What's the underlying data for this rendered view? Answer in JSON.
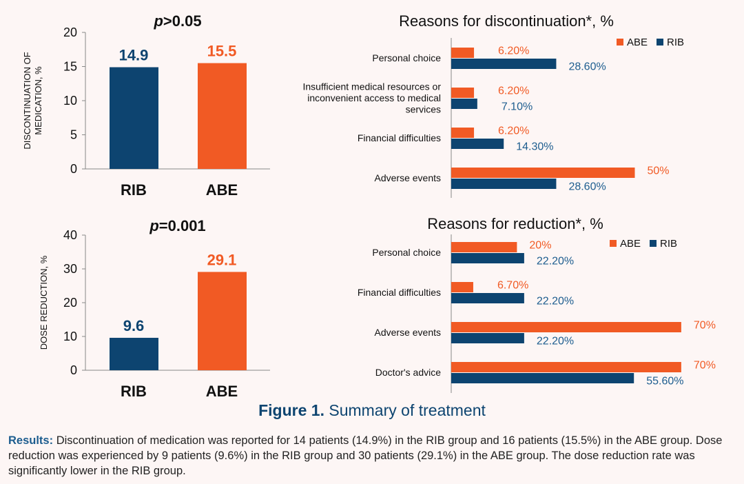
{
  "colors": {
    "RIB": "#0d4470",
    "ABE": "#f15a24",
    "axis": "#999999"
  },
  "chart_data": [
    {
      "type": "bar",
      "title_prefix": "p",
      "title_suffix": ">0.05",
      "ylabel": [
        "DISCONTINUATION OF",
        "MEDICATION, %"
      ],
      "categories": [
        "RIB",
        "ABE"
      ],
      "values": [
        14.9,
        15.5
      ],
      "data_labels": [
        "14.9",
        "15.5"
      ],
      "ylim": [
        0,
        20
      ],
      "yticks": [
        0,
        5,
        10,
        15,
        20
      ],
      "grid": false
    },
    {
      "type": "bar",
      "title_prefix": "p",
      "title_suffix": "=0.001",
      "ylabel": [
        "DOSE REDUCTION, %"
      ],
      "categories": [
        "RIB",
        "ABE"
      ],
      "values": [
        9.6,
        29.1
      ],
      "data_labels": [
        "9.6",
        "29.1"
      ],
      "ylim": [
        0,
        40
      ],
      "yticks": [
        0,
        10,
        20,
        30,
        40
      ],
      "grid": false
    },
    {
      "type": "bar",
      "orientation": "horizontal",
      "title": "Reasons for discontinuation*, %",
      "legend": [
        "ABE",
        "RIB"
      ],
      "legend_position": "top-right",
      "categories": [
        [
          "Personal choice"
        ],
        [
          "Insufficient medical resources or",
          "inconvenient access to medical",
          "services"
        ],
        [
          "Financial difficulties"
        ],
        [
          "Adverse events"
        ]
      ],
      "series": [
        {
          "name": "ABE",
          "values": [
            6.2,
            6.2,
            6.2,
            50
          ],
          "labels": [
            "6.20%",
            "6.20%",
            "6.20%",
            "50%"
          ]
        },
        {
          "name": "RIB",
          "values": [
            28.6,
            7.1,
            14.3,
            28.6
          ],
          "labels": [
            "28.60%",
            "7.10%",
            "14.30%",
            "28.60%"
          ]
        }
      ],
      "grid": false
    },
    {
      "type": "bar",
      "orientation": "horizontal",
      "title": "Reasons for reduction*, %",
      "legend": [
        "ABE",
        "RIB"
      ],
      "legend_position": "top-right",
      "categories": [
        [
          "Personal choice"
        ],
        [
          "Financial difficulties"
        ],
        [
          "Adverse events"
        ],
        [
          "Doctor's advice"
        ]
      ],
      "series": [
        {
          "name": "ABE",
          "values": [
            20,
            6.7,
            70,
            70
          ],
          "labels": [
            "20%",
            "6.70%",
            "70%",
            "70%"
          ]
        },
        {
          "name": "RIB",
          "values": [
            22.2,
            22.2,
            22.2,
            55.6
          ],
          "labels": [
            "22.20%",
            "22.20%",
            "22.20%",
            "55.60%"
          ]
        }
      ],
      "grid": false
    }
  ],
  "caption": {
    "label": "Figure 1.",
    "text": "Summary of treatment"
  },
  "results": {
    "label": "Results:",
    "text": "Discontinuation of medication was reported for 14 patients (14.9%) in the RIB group and 16 patients (15.5%) in the ABE group. Dose reduction was experienced by 9 patients (9.6%) in the RIB group and 30 patients (29.1%) in the ABE group. The dose reduction rate was significantly lower in the RIB group."
  }
}
